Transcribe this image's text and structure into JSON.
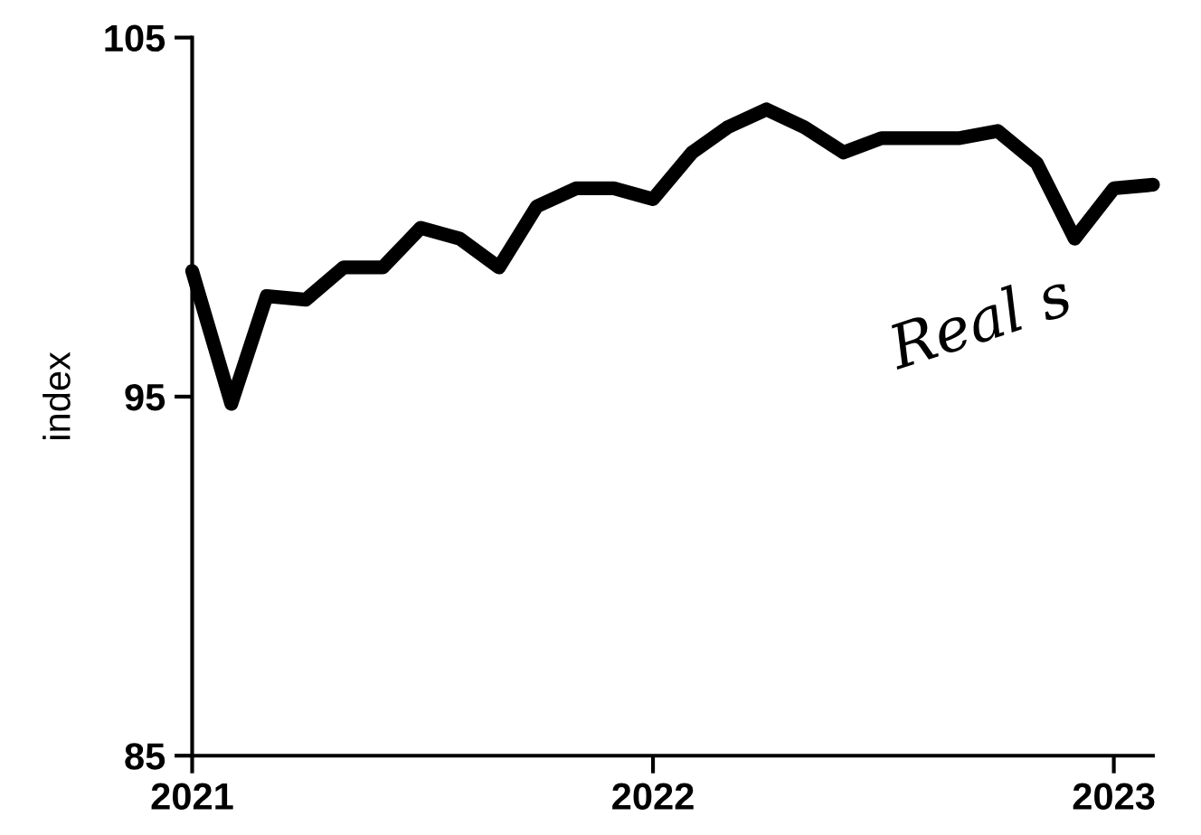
{
  "chart_data": {
    "type": "line",
    "ylabel": "index",
    "x": [
      "2021-01",
      "2021-02",
      "2021-03",
      "2021-04",
      "2021-05",
      "2021-06",
      "2021-07",
      "2021-08",
      "2021-09",
      "2021-10",
      "2021-11",
      "2021-12",
      "2022-01",
      "2022-02",
      "2022-03",
      "2022-04",
      "2022-05",
      "2022-06",
      "2022-07",
      "2022-08",
      "2022-09",
      "2022-10",
      "2022-11",
      "2022-12",
      "2023-01",
      "2023-02"
    ],
    "series": [
      {
        "color": "#000000",
        "values": [
          98.5,
          94.8,
          97.8,
          97.7,
          98.6,
          98.6,
          99.7,
          99.4,
          98.6,
          100.3,
          100.8,
          100.8,
          100.5,
          101.8,
          102.5,
          103.0,
          102.5,
          101.8,
          102.2,
          102.2,
          102.2,
          102.4,
          101.5,
          99.4,
          100.8,
          100.9
        ]
      }
    ],
    "xlim": [
      "2021-01",
      "2023-02"
    ],
    "xticks": [
      {
        "value": "2021-01",
        "label": "2021"
      },
      {
        "value": "2022-01",
        "label": "2022"
      },
      {
        "value": "2023-01",
        "label": "2023"
      }
    ],
    "ylim": [
      85,
      105
    ],
    "yticks": [
      85,
      95,
      105
    ],
    "grid": false,
    "legend": false,
    "marker": "none",
    "line_style": "solid",
    "annotations": [
      "Real s"
    ]
  }
}
